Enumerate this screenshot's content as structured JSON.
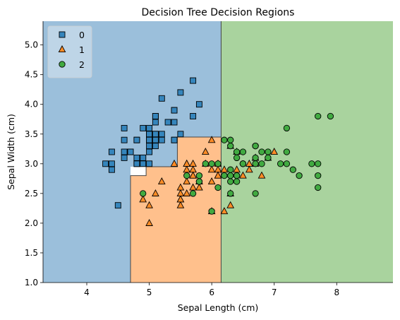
{
  "chart_data": {
    "type": "scatter",
    "title": "Decision Tree Decision Regions",
    "xlabel": "Sepal Length (cm)",
    "ylabel": "Sepal Width (cm)",
    "xlim": [
      3.3,
      8.9
    ],
    "ylim": [
      1.0,
      5.4
    ],
    "xticks": [
      4,
      5,
      6,
      7,
      8
    ],
    "yticks": [
      1.0,
      1.5,
      2.0,
      2.5,
      3.0,
      3.5,
      4.0,
      4.5,
      5.0
    ],
    "xtick_labels": [
      "4",
      "5",
      "6",
      "7",
      "8"
    ],
    "ytick_labels": [
      "1.0",
      "1.5",
      "2.0",
      "2.5",
      "3.0",
      "3.5",
      "4.0",
      "4.5",
      "5.0"
    ],
    "grid": false,
    "legend_position": "top-left",
    "regions": [
      {
        "class": "0",
        "color": "#9bbfdb",
        "polygon": [
          [
            3.3,
            5.4
          ],
          [
            6.15,
            5.4
          ],
          [
            6.15,
            3.45
          ],
          [
            5.45,
            3.45
          ],
          [
            5.45,
            2.95
          ],
          [
            4.7,
            2.95
          ],
          [
            4.7,
            1.0
          ],
          [
            3.3,
            1.0
          ]
        ]
      },
      {
        "class": "1",
        "color": "#ffc08c",
        "polygon": [
          [
            4.7,
            1.0
          ],
          [
            4.7,
            2.8
          ],
          [
            4.95,
            2.8
          ],
          [
            4.95,
            2.95
          ],
          [
            5.45,
            2.95
          ],
          [
            5.45,
            3.45
          ],
          [
            6.15,
            3.45
          ],
          [
            6.15,
            1.0
          ]
        ]
      },
      {
        "class": "2",
        "color": "#a9d39e",
        "polygon": [
          [
            6.15,
            5.4
          ],
          [
            8.9,
            5.4
          ],
          [
            8.9,
            1.0
          ],
          [
            6.15,
            1.0
          ]
        ]
      }
    ],
    "boundaries": [
      [
        [
          6.15,
          5.4
        ],
        [
          6.15,
          1.0
        ]
      ],
      [
        [
          4.7,
          1.0
        ],
        [
          4.7,
          2.8
        ],
        [
          4.95,
          2.8
        ],
        [
          4.95,
          2.95
        ],
        [
          5.45,
          2.95
        ],
        [
          5.45,
          3.45
        ],
        [
          6.15,
          3.45
        ]
      ]
    ],
    "series": [
      {
        "name": "0",
        "marker": "square",
        "color": "#1f77b4",
        "points": [
          [
            5.1,
            3.5
          ],
          [
            4.9,
            3.0
          ],
          [
            4.7,
            3.2
          ],
          [
            4.6,
            3.1
          ],
          [
            5.0,
            3.6
          ],
          [
            5.4,
            3.9
          ],
          [
            4.6,
            3.4
          ],
          [
            5.0,
            3.4
          ],
          [
            4.4,
            2.9
          ],
          [
            4.9,
            3.1
          ],
          [
            5.4,
            3.7
          ],
          [
            4.8,
            3.4
          ],
          [
            4.8,
            3.0
          ],
          [
            4.3,
            3.0
          ],
          [
            5.8,
            4.0
          ],
          [
            5.7,
            4.4
          ],
          [
            5.4,
            3.9
          ],
          [
            5.1,
            3.5
          ],
          [
            5.7,
            3.8
          ],
          [
            5.1,
            3.8
          ],
          [
            5.4,
            3.4
          ],
          [
            5.1,
            3.7
          ],
          [
            4.6,
            3.6
          ],
          [
            5.1,
            3.3
          ],
          [
            4.8,
            3.4
          ],
          [
            5.0,
            3.0
          ],
          [
            5.0,
            3.4
          ],
          [
            5.2,
            3.5
          ],
          [
            5.2,
            3.4
          ],
          [
            4.7,
            3.2
          ],
          [
            4.8,
            3.1
          ],
          [
            5.4,
            3.4
          ],
          [
            5.2,
            4.1
          ],
          [
            5.5,
            4.2
          ],
          [
            4.9,
            3.1
          ],
          [
            5.0,
            3.2
          ],
          [
            5.5,
            3.5
          ],
          [
            4.9,
            3.6
          ],
          [
            4.4,
            3.0
          ],
          [
            5.1,
            3.4
          ],
          [
            5.0,
            3.5
          ],
          [
            4.5,
            2.3
          ],
          [
            4.4,
            3.2
          ],
          [
            5.0,
            3.5
          ],
          [
            5.1,
            3.8
          ],
          [
            4.8,
            3.0
          ],
          [
            5.1,
            3.8
          ],
          [
            4.6,
            3.2
          ],
          [
            5.3,
            3.7
          ],
          [
            5.0,
            3.3
          ]
        ]
      },
      {
        "name": "1",
        "marker": "triangle",
        "color": "#ff7f0e",
        "points": [
          [
            7.0,
            3.2
          ],
          [
            6.4,
            3.2
          ],
          [
            6.9,
            3.1
          ],
          [
            5.5,
            2.3
          ],
          [
            6.5,
            2.8
          ],
          [
            5.7,
            2.8
          ],
          [
            6.3,
            3.3
          ],
          [
            4.9,
            2.4
          ],
          [
            6.6,
            2.9
          ],
          [
            5.2,
            2.7
          ],
          [
            5.0,
            2.0
          ],
          [
            5.9,
            3.0
          ],
          [
            6.0,
            2.2
          ],
          [
            6.1,
            2.9
          ],
          [
            5.6,
            2.9
          ],
          [
            6.7,
            3.1
          ],
          [
            5.6,
            3.0
          ],
          [
            5.8,
            2.7
          ],
          [
            6.2,
            2.2
          ],
          [
            5.6,
            2.5
          ],
          [
            5.9,
            3.2
          ],
          [
            6.1,
            2.8
          ],
          [
            6.3,
            2.5
          ],
          [
            6.1,
            2.8
          ],
          [
            6.4,
            2.9
          ],
          [
            6.6,
            3.0
          ],
          [
            6.8,
            2.8
          ],
          [
            6.7,
            3.0
          ],
          [
            6.0,
            2.9
          ],
          [
            5.7,
            2.6
          ],
          [
            5.5,
            2.4
          ],
          [
            5.5,
            2.4
          ],
          [
            5.8,
            2.7
          ],
          [
            6.0,
            2.7
          ],
          [
            5.4,
            3.0
          ],
          [
            6.0,
            3.4
          ],
          [
            6.7,
            3.1
          ],
          [
            6.3,
            2.3
          ],
          [
            5.6,
            3.0
          ],
          [
            5.5,
            2.5
          ],
          [
            5.5,
            2.6
          ],
          [
            6.1,
            3.0
          ],
          [
            5.8,
            2.6
          ],
          [
            5.0,
            2.3
          ],
          [
            5.6,
            2.7
          ],
          [
            5.7,
            3.0
          ],
          [
            5.7,
            2.9
          ],
          [
            6.2,
            2.9
          ],
          [
            5.1,
            2.5
          ],
          [
            5.7,
            2.8
          ]
        ]
      },
      {
        "name": "2",
        "marker": "circle",
        "color": "#2ca02c",
        "points": [
          [
            6.3,
            3.3
          ],
          [
            5.8,
            2.7
          ],
          [
            7.1,
            3.0
          ],
          [
            6.3,
            2.9
          ],
          [
            6.5,
            3.0
          ],
          [
            7.6,
            3.0
          ],
          [
            4.9,
            2.5
          ],
          [
            7.3,
            2.9
          ],
          [
            6.7,
            2.5
          ],
          [
            7.2,
            3.6
          ],
          [
            6.5,
            3.2
          ],
          [
            6.4,
            2.7
          ],
          [
            6.8,
            3.0
          ],
          [
            5.7,
            2.5
          ],
          [
            5.8,
            2.8
          ],
          [
            6.4,
            3.2
          ],
          [
            6.5,
            3.0
          ],
          [
            7.7,
            3.8
          ],
          [
            7.7,
            2.6
          ],
          [
            6.0,
            2.2
          ],
          [
            6.9,
            3.2
          ],
          [
            5.6,
            2.8
          ],
          [
            7.7,
            2.8
          ],
          [
            6.3,
            2.7
          ],
          [
            6.7,
            3.3
          ],
          [
            7.2,
            3.2
          ],
          [
            6.2,
            2.8
          ],
          [
            6.1,
            3.0
          ],
          [
            6.4,
            2.8
          ],
          [
            7.2,
            3.0
          ],
          [
            7.4,
            2.8
          ],
          [
            7.9,
            3.8
          ],
          [
            6.4,
            2.8
          ],
          [
            6.3,
            2.8
          ],
          [
            6.1,
            2.6
          ],
          [
            7.7,
            3.0
          ],
          [
            6.3,
            3.4
          ],
          [
            6.4,
            3.1
          ],
          [
            6.0,
            3.0
          ],
          [
            6.9,
            3.1
          ],
          [
            6.7,
            3.1
          ],
          [
            6.9,
            3.1
          ],
          [
            5.8,
            2.7
          ],
          [
            6.8,
            3.2
          ],
          [
            6.7,
            3.3
          ],
          [
            6.7,
            3.0
          ],
          [
            6.3,
            2.5
          ],
          [
            6.5,
            3.0
          ],
          [
            6.2,
            3.4
          ],
          [
            5.9,
            3.0
          ]
        ]
      }
    ]
  }
}
